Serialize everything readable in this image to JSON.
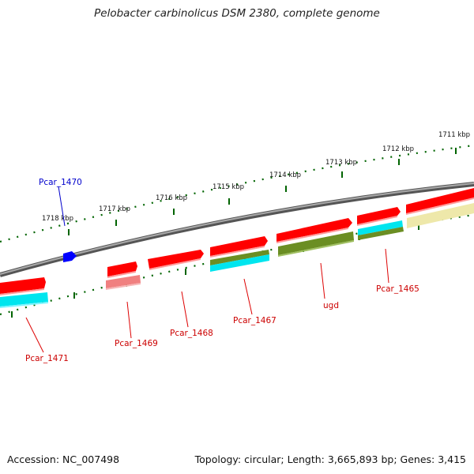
{
  "title": "Pelobacter carbinolicus DSM 2380, complete genome",
  "footer": {
    "accession": "Accession: NC_007498",
    "stats": "Topology: circular; Length: 3,665,893 bp; Genes: 3,415"
  },
  "scale_labels": [
    "1718 kbp",
    "1717 kbp",
    "1716 kbp",
    "1715 kbp",
    "1714 kbp",
    "1713 kbp",
    "1712 kbp",
    "1711 kbp"
  ],
  "gene_labels": {
    "pcar_1470": "Pcar_1470",
    "pcar_1471": "Pcar_1471",
    "pcar_1469": "Pcar_1469",
    "pcar_1468": "Pcar_1468",
    "pcar_1467": "Pcar_1467",
    "ugd": "ugd",
    "pcar_1465": "Pcar_1465"
  },
  "colors": {
    "cds": "#ff0000",
    "highlight_gene": "#0000ff",
    "cyan_track": "#00e5ee",
    "olive_track": "#6b8e23",
    "pink_track": "#f08080",
    "khaki_track": "#eee8aa",
    "backbone": "#808080",
    "ticks": "#006400"
  }
}
